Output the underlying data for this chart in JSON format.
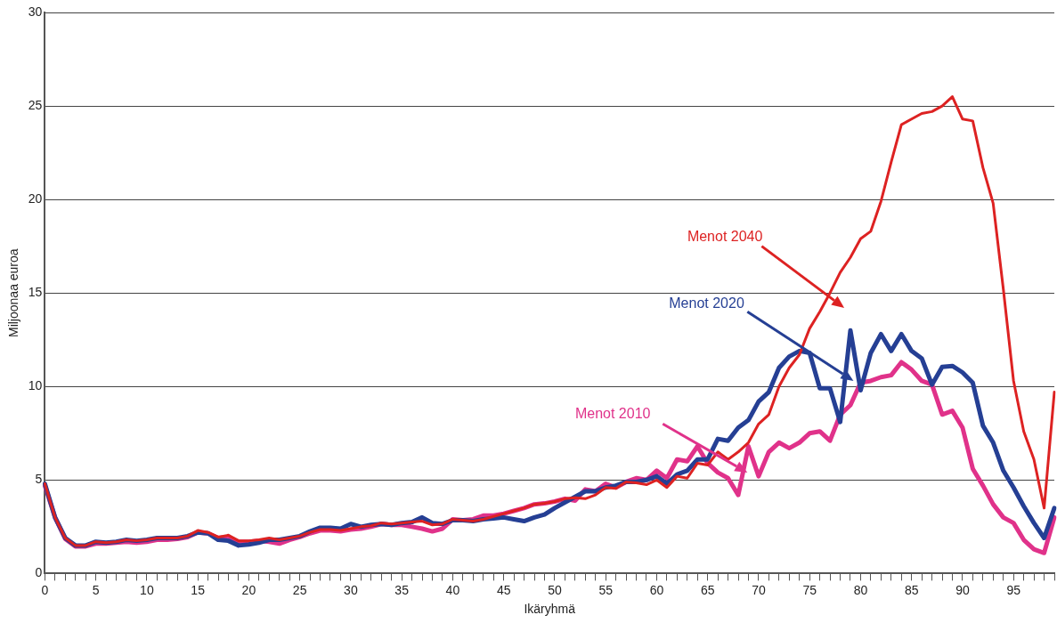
{
  "chart_data": {
    "type": "line",
    "xlabel": "Ikäryhmä",
    "ylabel": "Miljoonaa euroa",
    "categories": [
      "0",
      null,
      null,
      null,
      null,
      "5",
      null,
      null,
      null,
      null,
      "10",
      null,
      null,
      null,
      null,
      "15",
      null,
      null,
      null,
      null,
      "20",
      null,
      null,
      null,
      null,
      "25",
      null,
      null,
      null,
      null,
      "30",
      null,
      null,
      null,
      null,
      "35",
      null,
      null,
      null,
      null,
      "40",
      null,
      null,
      null,
      null,
      "45",
      null,
      null,
      null,
      null,
      "50",
      null,
      null,
      null,
      null,
      "55",
      null,
      null,
      null,
      null,
      "60",
      null,
      null,
      null,
      null,
      "65",
      null,
      null,
      null,
      null,
      "70",
      null,
      null,
      null,
      null,
      "75",
      null,
      null,
      null,
      null,
      "80",
      null,
      null,
      null,
      null,
      "85",
      null,
      null,
      null,
      null,
      "90",
      null,
      null,
      null,
      null,
      "95",
      null,
      null,
      null,
      null
    ],
    "series": [
      {
        "name": "Menot 2010",
        "color": "#e0328a",
        "values": [
          4.7,
          3.0,
          1.85,
          1.45,
          1.45,
          1.6,
          1.6,
          1.65,
          1.7,
          1.65,
          1.7,
          1.8,
          1.8,
          1.85,
          1.95,
          2.2,
          2.15,
          1.9,
          1.95,
          1.7,
          1.7,
          1.75,
          1.7,
          1.6,
          1.8,
          1.95,
          2.15,
          2.3,
          2.3,
          2.25,
          2.35,
          2.4,
          2.5,
          2.65,
          2.6,
          2.6,
          2.5,
          2.4,
          2.25,
          2.4,
          2.9,
          2.85,
          2.9,
          3.1,
          3.1,
          3.2,
          3.35,
          3.5,
          3.7,
          3.75,
          3.85,
          4.0,
          3.9,
          4.5,
          4.4,
          4.8,
          4.6,
          4.9,
          5.1,
          5.0,
          5.5,
          5.1,
          6.1,
          6.0,
          6.8,
          5.9,
          5.4,
          5.1,
          4.2,
          6.8,
          5.2,
          6.5,
          7.0,
          6.7,
          7.0,
          7.5,
          7.6,
          7.1,
          8.5,
          9.0,
          10.2,
          10.3,
          10.5,
          10.6,
          11.3,
          10.9,
          10.3,
          10.1,
          8.5,
          8.7,
          7.8,
          5.6,
          4.7,
          3.7,
          3.0,
          2.7,
          1.8,
          1.3,
          1.1,
          3.0
        ]
      },
      {
        "name": "Menot 2020",
        "color": "#253f94",
        "values": [
          4.8,
          3.0,
          1.9,
          1.5,
          1.5,
          1.7,
          1.65,
          1.7,
          1.8,
          1.75,
          1.8,
          1.9,
          1.9,
          1.9,
          2.0,
          2.2,
          2.15,
          1.8,
          1.75,
          1.5,
          1.55,
          1.65,
          1.8,
          1.8,
          1.9,
          2.0,
          2.25,
          2.45,
          2.45,
          2.4,
          2.65,
          2.5,
          2.6,
          2.65,
          2.6,
          2.7,
          2.75,
          3.0,
          2.7,
          2.65,
          2.85,
          2.85,
          2.8,
          2.9,
          2.95,
          3.0,
          2.9,
          2.8,
          3.0,
          3.15,
          3.5,
          3.8,
          4.1,
          4.4,
          4.4,
          4.6,
          4.7,
          4.9,
          4.9,
          5.0,
          5.2,
          4.8,
          5.3,
          5.5,
          6.1,
          6.1,
          7.2,
          7.1,
          7.8,
          8.2,
          9.2,
          9.7,
          11.0,
          11.6,
          11.9,
          11.8,
          9.9,
          9.9,
          8.1,
          13.0,
          9.8,
          11.8,
          12.8,
          11.9,
          12.8,
          11.9,
          11.5,
          10.1,
          11.05,
          11.1,
          10.75,
          10.2,
          7.9,
          7.0,
          5.5,
          4.6,
          3.6,
          2.7,
          1.9,
          3.5
        ]
      },
      {
        "name": "Menot 2040",
        "color": "#dd2222",
        "values": [
          4.8,
          3.0,
          1.9,
          1.5,
          1.5,
          1.7,
          1.65,
          1.7,
          1.8,
          1.75,
          1.8,
          1.9,
          1.9,
          1.9,
          2.0,
          2.3,
          2.2,
          1.95,
          2.05,
          1.75,
          1.75,
          1.8,
          1.9,
          1.8,
          1.9,
          2.0,
          2.2,
          2.35,
          2.35,
          2.3,
          2.4,
          2.5,
          2.55,
          2.7,
          2.65,
          2.7,
          2.75,
          2.8,
          2.6,
          2.65,
          2.9,
          2.85,
          2.8,
          2.9,
          3.05,
          3.2,
          3.35,
          3.5,
          3.7,
          3.75,
          3.85,
          4.0,
          4.05,
          4.0,
          4.2,
          4.6,
          4.55,
          4.9,
          4.85,
          4.75,
          5.0,
          4.6,
          5.2,
          5.1,
          5.9,
          5.8,
          6.5,
          6.1,
          6.5,
          7.0,
          8.0,
          8.5,
          10.0,
          11.0,
          11.7,
          13.1,
          14.0,
          15.0,
          16.1,
          16.9,
          17.9,
          18.3,
          19.9,
          22.0,
          24.0,
          24.3,
          24.6,
          24.7,
          25.0,
          25.5,
          24.3,
          24.2,
          21.7,
          19.8,
          15.2,
          10.3,
          7.6,
          6.1,
          3.5,
          9.7
        ]
      }
    ],
    "ylim": [
      0,
      30
    ],
    "yticks": [
      0,
      5,
      10,
      15,
      20,
      25,
      30
    ],
    "grid": "y",
    "legend": false,
    "marker": "none",
    "line_style": "solid"
  }
}
